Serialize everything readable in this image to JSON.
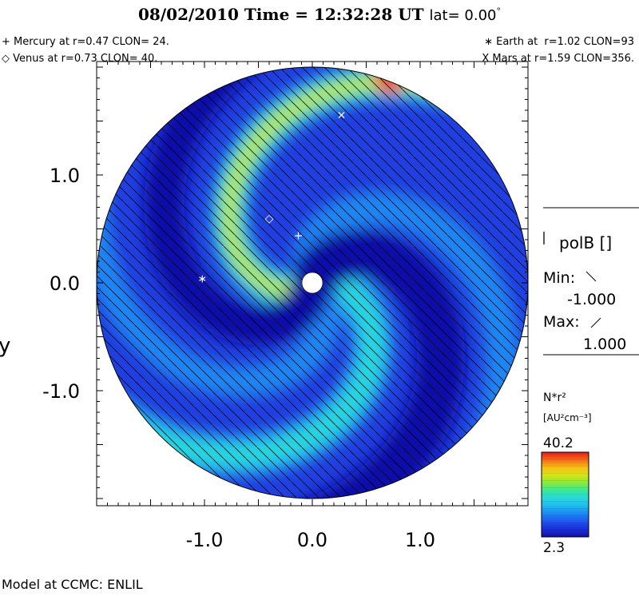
{
  "header": {
    "date": "08/02/2010",
    "time_label": "Time = 12:32:28 UT",
    "lat_label": "lat= 0.00",
    "lat_degree": "°"
  },
  "planets": {
    "mercury": "+ Mercury at r=0.47 CLON= 24.",
    "venus": "◇ Venus at r=0.73 CLON= 40.",
    "earth": "∗ Earth at  r=1.02 CLON=93",
    "mars": "X Mars at r=1.59 CLON=356."
  },
  "legend": {
    "polarity_title": "polB []",
    "min_label": "Min:",
    "min_value": "-1.000",
    "max_label": "Max:",
    "max_value": "1.000",
    "colorbar_title": "N*r²",
    "colorbar_units": "[AU²cm⁻³]",
    "colorbar_max": "40.2",
    "colorbar_min": "2.3",
    "colormap": [
      "#1010a8",
      "#1a2fd8",
      "#1f55ee",
      "#1c86f2",
      "#20b8f2",
      "#28d8dc",
      "#36e89a",
      "#86ea3c",
      "#d6e418",
      "#f6c018",
      "#f46a18",
      "#e81818"
    ]
  },
  "footer": {
    "model": "Model at CCMC: ENLIL"
  },
  "chart_data": {
    "type": "heatmap",
    "title": "08/02/2010 Time = 12:32:28 UT lat= 0.00°",
    "quantity": "N*r²",
    "units": "AU²cm⁻³",
    "color_range": [
      2.3,
      40.2
    ],
    "xlim": [
      -2.0,
      2.0
    ],
    "ylim": [
      -2.0,
      2.0
    ],
    "xlabel": "",
    "ylabel": "y",
    "x_ticks": [
      "-1.0",
      "0.0",
      "1.0"
    ],
    "x_tick_values": [
      -1.0,
      0.0,
      1.0
    ],
    "y_ticks": [
      "1.0",
      "0.0",
      "-1.0"
    ],
    "y_tick_values": [
      1.0,
      0.0,
      -1.0
    ],
    "domain_radius": 2.0,
    "polarity_hatch": true,
    "markers": [
      {
        "name": "Mercury",
        "symbol": "+",
        "x": -0.13,
        "y": 0.44
      },
      {
        "name": "Venus",
        "symbol": "◇",
        "x": -0.4,
        "y": 0.6
      },
      {
        "name": "Earth",
        "symbol": "∗",
        "x": -1.02,
        "y": 0.04
      },
      {
        "name": "Mars",
        "symbol": "×",
        "x": 0.27,
        "y": 1.56
      }
    ]
  }
}
